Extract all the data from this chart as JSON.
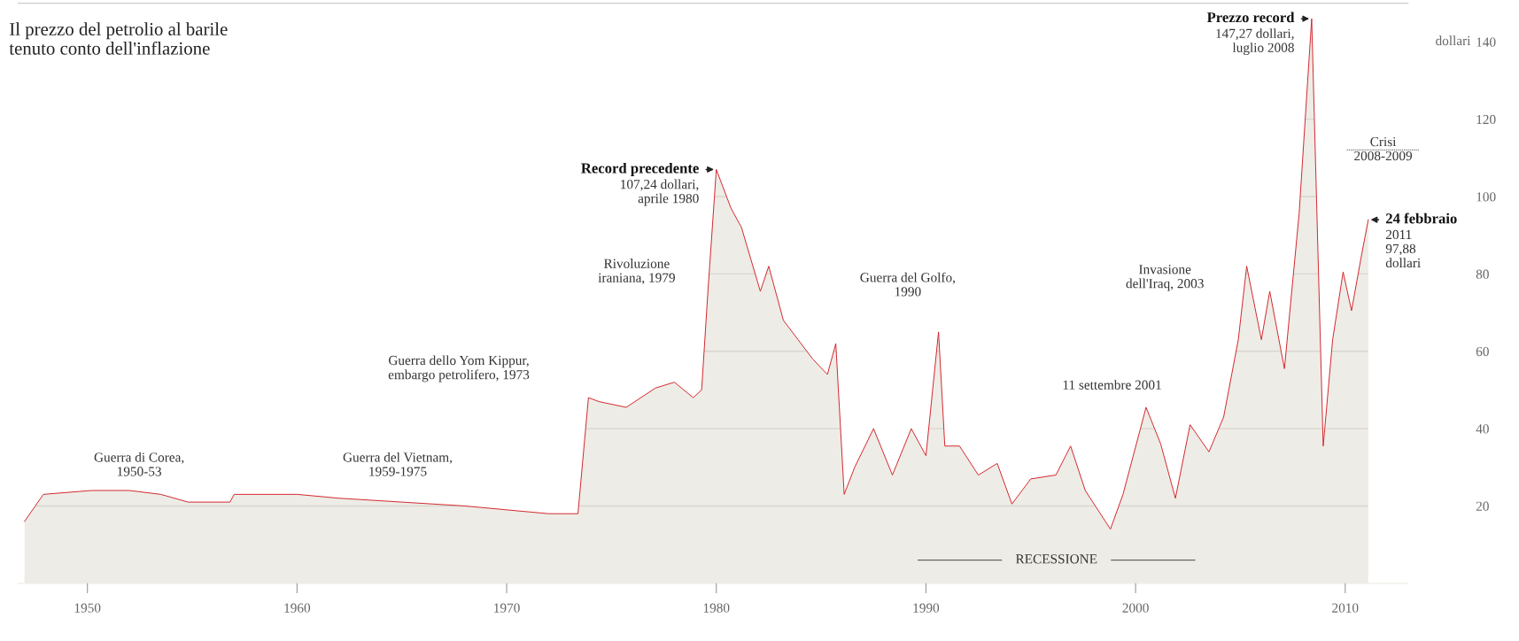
{
  "chart_data": {
    "type": "area",
    "title": "Il prezzo del petrolio al barile\ntenuto conto dell'inflazione",
    "ylabel": "dollari",
    "x": [
      1947.0,
      1947.9,
      1950.2,
      1952.0,
      1953.5,
      1954.8,
      1956.8,
      1957.0,
      1960.0,
      1962.0,
      1965.0,
      1968.0,
      1970.0,
      1972.0,
      1973.4,
      1973.9,
      1974.4,
      1975.7,
      1977.1,
      1978.0,
      1978.9,
      1979.3,
      1979.6,
      1980.0,
      1980.7,
      1981.2,
      1982.1,
      1982.5,
      1983.2,
      1983.9,
      1984.6,
      1985.3,
      1985.7,
      1986.1,
      1986.6,
      1987.5,
      1988.4,
      1989.3,
      1990.0,
      1990.6,
      1990.9,
      1991.6,
      1992.5,
      1993.4,
      1994.1,
      1995.0,
      1996.2,
      1996.9,
      1997.6,
      1998.8,
      1999.4,
      2000.5,
      2001.2,
      2001.9,
      2002.6,
      2003.5,
      2004.2,
      2004.9,
      2005.3,
      2006.0,
      2006.4,
      2007.1,
      2007.8,
      2008.4,
      2008.7,
      2008.95,
      2009.4,
      2009.9,
      2010.3,
      2010.8,
      2011.1
    ],
    "series": [
      {
        "color": "#d2232a",
        "values": [
          16,
          23,
          24,
          24,
          23,
          21,
          21,
          23,
          23,
          22,
          21,
          20,
          19,
          18,
          18,
          48,
          47,
          45.5,
          50.5,
          52,
          48,
          50,
          75.5,
          107,
          97,
          92,
          75.5,
          82,
          68,
          63,
          58,
          54,
          62,
          23,
          30,
          40,
          28,
          40,
          33,
          65,
          35.5,
          35.5,
          28,
          31,
          20.5,
          27,
          28,
          35.5,
          24,
          14,
          23,
          45.5,
          36,
          22,
          41,
          34,
          43,
          63,
          82,
          63,
          75.5,
          55.5,
          95.5,
          146,
          85.5,
          35.5,
          63,
          80.5,
          70.5,
          85.5,
          94
        ]
      }
    ],
    "xlim": [
      1946.7,
      2013
    ],
    "ylim": [
      0,
      150
    ],
    "xticks": [
      1950,
      1960,
      1970,
      1980,
      1990,
      2000,
      2010
    ],
    "yticks": [
      20,
      40,
      60,
      80,
      100,
      120,
      140
    ],
    "grid": "y",
    "annotations": [
      "Guerra di Corea,\n1950-53",
      "Guerra del Vietnam,\n1959-1975",
      "Guerra dello Yom Kippur,\nembargo petrolifero, 1973",
      "Rivoluzione\niraniana, 1979",
      "Guerra del Golfo,\n1990",
      "11 settembre 2001",
      "Invasione\ndell'Iraq, 2003",
      "Crisi\n2008-2009",
      "RECESSIONE",
      {
        "text": "Record precedente\n107,24 dollari,\naprile 1980",
        "x": 1980.0,
        "y": 107
      },
      {
        "text": "Prezzo record\n147,27 dollari,\nluglio 2008",
        "x": 2008.4,
        "y": 146
      },
      {
        "text": "24 febbraio\n2011\n97,88\ndollari",
        "x": 2011.1,
        "y": 94
      }
    ]
  }
}
